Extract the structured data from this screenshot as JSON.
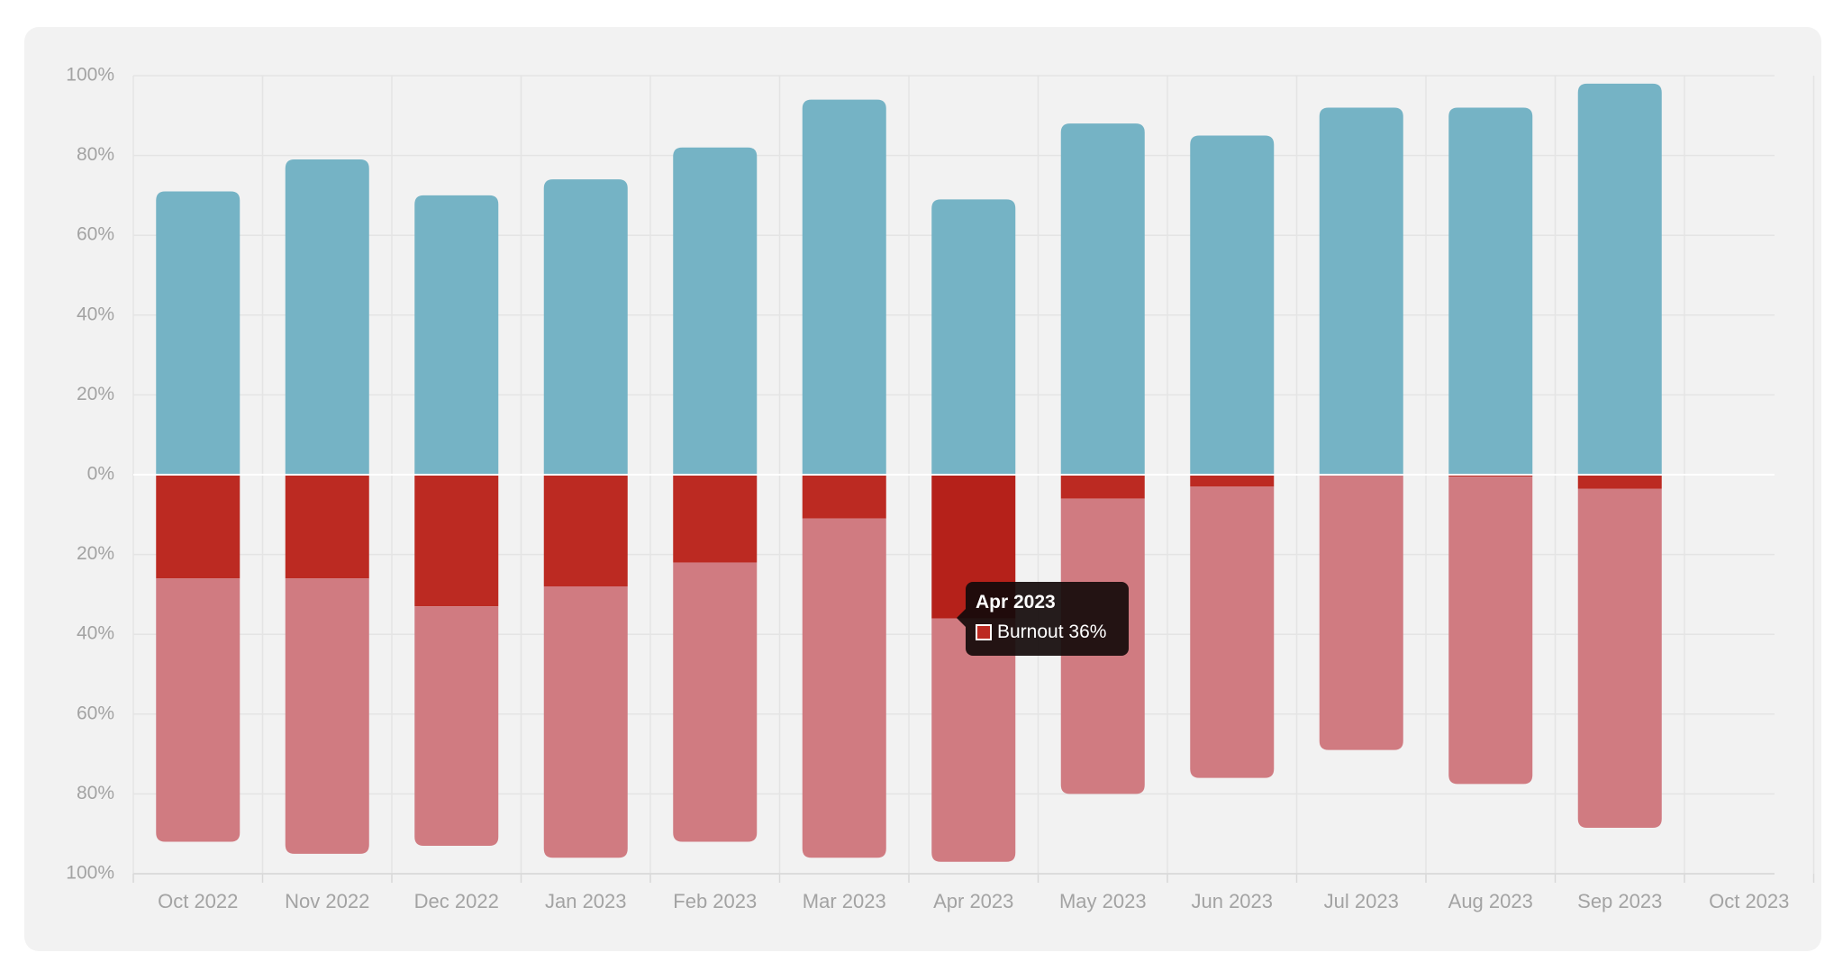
{
  "chart_data": {
    "type": "bar",
    "stacked": "diverging",
    "categories": [
      "Oct 2022",
      "Nov 2022",
      "Dec 2022",
      "Jan 2023",
      "Feb 2023",
      "Mar 2023",
      "Apr 2023",
      "May 2023",
      "Jun 2023",
      "Jul 2023",
      "Aug 2023",
      "Sep 2023"
    ],
    "x_tick_labels": [
      "Oct 2022",
      "Nov 2022",
      "Dec 2022",
      "Jan 2023",
      "Feb 2023",
      "Mar 2023",
      "Apr 2023",
      "May 2023",
      "Jun 2023",
      "Jul 2023",
      "Aug 2023",
      "Sep 2023",
      "Oct 2023"
    ],
    "y_tick_labels": [
      "100%",
      "80%",
      "60%",
      "40%",
      "20%",
      "0%",
      "20%",
      "40%",
      "60%",
      "80%",
      "100%"
    ],
    "ylim": [
      -100,
      100
    ],
    "grid": true,
    "series": [
      {
        "direction": "up",
        "color": "#75b3c5",
        "values": [
          71,
          79,
          70,
          74,
          82,
          94,
          69,
          88,
          85,
          92,
          92,
          98
        ]
      },
      {
        "name": "Burnout",
        "direction": "down",
        "color": "#bc2a22",
        "values": [
          26,
          26,
          33,
          28,
          22,
          11,
          36,
          6,
          3,
          0,
          0.5,
          3.5
        ]
      },
      {
        "direction": "down",
        "color": "#d07b81",
        "values": [
          66,
          69,
          60,
          68,
          70,
          85,
          61,
          74,
          73,
          69,
          77,
          85
        ]
      }
    ],
    "highlight": {
      "index": 6,
      "color": "#b5211a"
    }
  },
  "tooltip": {
    "title": "Apr 2023",
    "series_label": "Burnout 36%",
    "swatch_color": "#bc2a22"
  }
}
